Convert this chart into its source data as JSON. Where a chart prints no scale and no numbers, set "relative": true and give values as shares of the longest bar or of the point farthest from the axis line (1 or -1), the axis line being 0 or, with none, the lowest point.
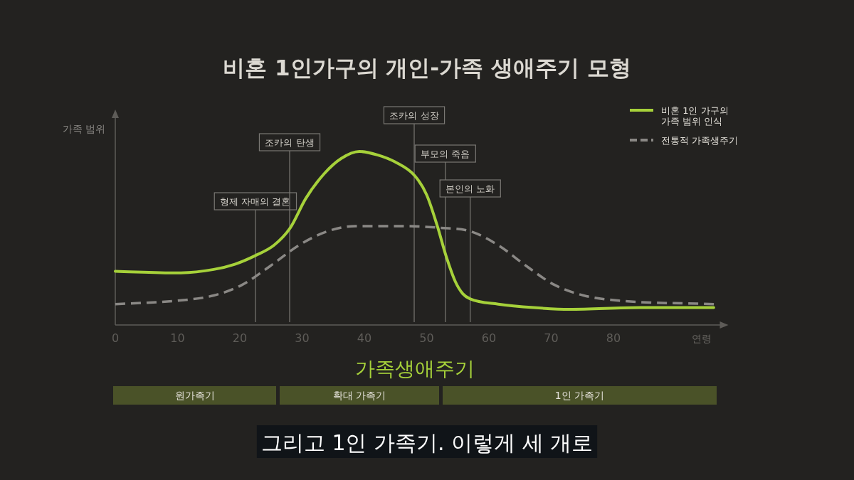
{
  "chart_data": {
    "type": "line",
    "title": "비혼 1인가구의 개인-가족 생애주기 모형",
    "xlabel": "연령",
    "ylabel": "가족 범위",
    "relative": true,
    "xlim": [
      0,
      98
    ],
    "xticks": [
      0,
      10,
      20,
      30,
      40,
      50,
      60,
      70,
      80
    ],
    "legend": "top right",
    "grid": false,
    "series": [
      {
        "name": "비혼 1인 가구의 가족 범위 인식",
        "color": "#a6d13a",
        "line_style": "solid",
        "x": [
          0,
          10,
          15.8,
          19.2,
          22.5,
          25.5,
          28.1,
          30.6,
          33.5,
          36.3,
          39.2,
          42.1,
          44.9,
          48.1,
          50,
          51.8,
          53.1,
          54.6,
          55.8,
          57,
          61.5,
          67.2,
          72.9,
          84.3,
          96.1
        ],
        "values": [
          0.31,
          0.3,
          0.32,
          0.35,
          0.4,
          0.46,
          0.56,
          0.73,
          0.87,
          0.96,
          1,
          0.98,
          0.94,
          0.86,
          0.75,
          0.56,
          0.4,
          0.25,
          0.18,
          0.15,
          0.12,
          0.1,
          0.09,
          0.1,
          0.1
        ]
      },
      {
        "name": "전통적 가족생주기",
        "color": "#8a8885",
        "line_style": "dashed",
        "x": [
          0,
          10,
          15.8,
          20.3,
          24.9,
          29.5,
          34.1,
          38.6,
          45.5,
          52.3,
          57,
          61.5,
          66,
          70.6,
          75.2,
          80.9,
          96.3
        ],
        "values": [
          0.12,
          0.14,
          0.17,
          0.23,
          0.34,
          0.46,
          0.54,
          0.57,
          0.57,
          0.56,
          0.54,
          0.46,
          0.34,
          0.23,
          0.17,
          0.14,
          0.12
        ]
      }
    ],
    "ref_lines": [
      {
        "axis": "x",
        "value": 22.5,
        "label": "형제 자매의 결혼"
      },
      {
        "axis": "x",
        "value": 28,
        "label": "조카의 탄생"
      },
      {
        "axis": "x",
        "value": 48,
        "label": "조카의 성장"
      },
      {
        "axis": "x",
        "value": 53,
        "label": "부모의 죽음"
      },
      {
        "axis": "x",
        "value": 57,
        "label": "본인의 노화"
      }
    ],
    "annotations": [
      "가족생애주기",
      "원가족기",
      "확대 가족기",
      "1인 가족기",
      "그리고 1인 가족기. 이렇게 세 개로"
    ]
  }
}
